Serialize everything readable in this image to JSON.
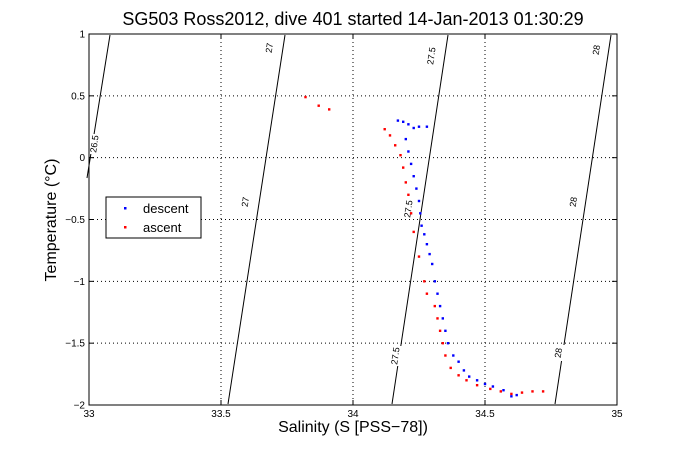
{
  "chart_data": {
    "type": "scatter",
    "title": "SG503 Ross2012, dive 401 started 14-Jan-2013 01:30:29",
    "xlabel": "Salinity (S [PSS−78])",
    "ylabel": "Temperature (°C)",
    "xlim": [
      33,
      35
    ],
    "ylim": [
      -2,
      1
    ],
    "xticks": [
      "33",
      "33.5",
      "34",
      "34.5",
      "35"
    ],
    "yticks": [
      "−2",
      "−1.5",
      "−1",
      "−0.5",
      "0",
      "0.5",
      "1"
    ],
    "grid": true,
    "legend_position": "left",
    "contour_labels": [
      "26.5",
      "27",
      "27",
      "27.5",
      "27.5",
      "27.5",
      "28",
      "28",
      "28"
    ],
    "series": [
      {
        "name": "descent",
        "color": "#0000ff",
        "points": [
          [
            34.17,
            0.3
          ],
          [
            34.19,
            0.29
          ],
          [
            34.21,
            0.27
          ],
          [
            34.23,
            0.24
          ],
          [
            34.25,
            0.25
          ],
          [
            34.28,
            0.25
          ],
          [
            34.2,
            0.15
          ],
          [
            34.21,
            0.05
          ],
          [
            34.22,
            -0.05
          ],
          [
            34.23,
            -0.15
          ],
          [
            34.24,
            -0.25
          ],
          [
            34.25,
            -0.35
          ],
          [
            34.255,
            -0.45
          ],
          [
            34.26,
            -0.55
          ],
          [
            34.27,
            -0.62
          ],
          [
            34.28,
            -0.7
          ],
          [
            34.29,
            -0.78
          ],
          [
            34.3,
            -0.86
          ],
          [
            34.31,
            -1.0
          ],
          [
            34.32,
            -1.1
          ],
          [
            34.33,
            -1.2
          ],
          [
            34.34,
            -1.3
          ],
          [
            34.35,
            -1.4
          ],
          [
            34.36,
            -1.5
          ],
          [
            34.38,
            -1.6
          ],
          [
            34.4,
            -1.65
          ],
          [
            34.42,
            -1.72
          ],
          [
            34.44,
            -1.77
          ],
          [
            34.47,
            -1.8
          ],
          [
            34.5,
            -1.83
          ],
          [
            34.53,
            -1.85
          ],
          [
            34.57,
            -1.88
          ],
          [
            34.6,
            -1.93
          ],
          [
            34.62,
            -1.92
          ]
        ]
      },
      {
        "name": "ascent",
        "color": "#ff0000",
        "points": [
          [
            33.82,
            0.49
          ],
          [
            33.87,
            0.42
          ],
          [
            33.91,
            0.39
          ],
          [
            34.12,
            0.23
          ],
          [
            34.14,
            0.18
          ],
          [
            34.16,
            0.1
          ],
          [
            34.18,
            0.02
          ],
          [
            34.19,
            -0.08
          ],
          [
            34.2,
            -0.2
          ],
          [
            34.21,
            -0.3
          ],
          [
            34.22,
            -0.45
          ],
          [
            34.23,
            -0.6
          ],
          [
            34.25,
            -0.8
          ],
          [
            34.27,
            -1.0
          ],
          [
            34.28,
            -1.1
          ],
          [
            34.31,
            -1.2
          ],
          [
            34.32,
            -1.3
          ],
          [
            34.33,
            -1.4
          ],
          [
            34.34,
            -1.5
          ],
          [
            34.35,
            -1.6
          ],
          [
            34.37,
            -1.7
          ],
          [
            34.4,
            -1.76
          ],
          [
            34.43,
            -1.8
          ],
          [
            34.47,
            -1.84
          ],
          [
            34.52,
            -1.87
          ],
          [
            34.56,
            -1.89
          ],
          [
            34.6,
            -1.91
          ],
          [
            34.64,
            -1.9
          ],
          [
            34.68,
            -1.89
          ],
          [
            34.72,
            -1.89
          ]
        ]
      }
    ]
  }
}
